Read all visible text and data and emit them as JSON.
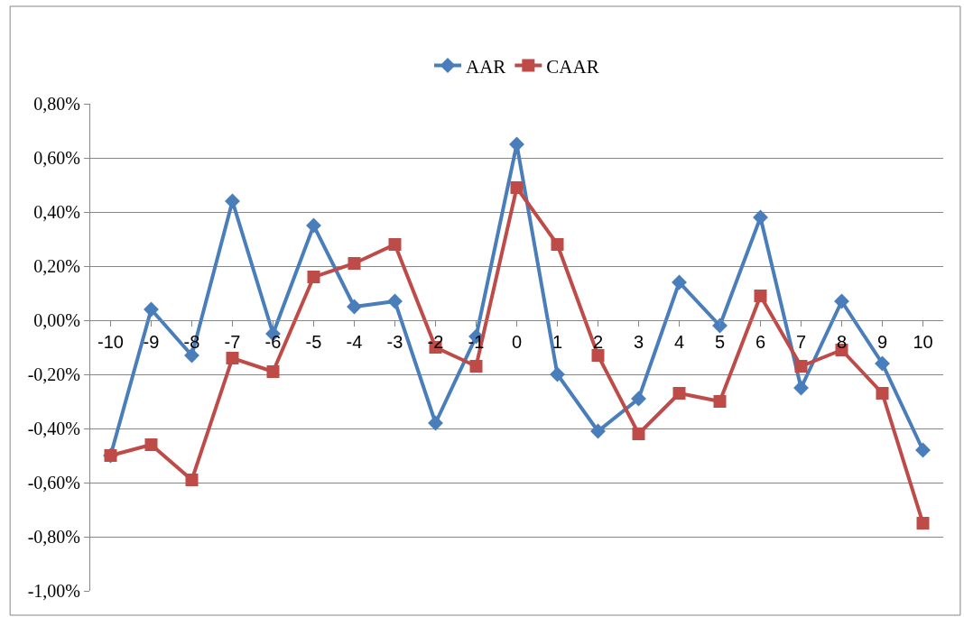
{
  "chart_data": {
    "type": "line",
    "categories": [
      "-10",
      "-9",
      "-8",
      "-7",
      "-6",
      "-5",
      "-4",
      "-3",
      "-2",
      "-1",
      "0",
      "1",
      "2",
      "3",
      "4",
      "5",
      "6",
      "7",
      "8",
      "9",
      "10"
    ],
    "series": [
      {
        "name": "AAR",
        "color": "#4a7ebb",
        "marker": "diamond",
        "values": [
          -0.5,
          0.04,
          -0.13,
          0.44,
          -0.05,
          0.35,
          0.05,
          0.07,
          -0.38,
          -0.06,
          0.65,
          -0.2,
          -0.41,
          -0.29,
          0.14,
          -0.02,
          0.38,
          -0.25,
          0.07,
          -0.16,
          -0.48
        ]
      },
      {
        "name": "CAAR",
        "color": "#be4b48",
        "marker": "square",
        "values": [
          -0.5,
          -0.46,
          -0.59,
          -0.14,
          -0.19,
          0.16,
          0.21,
          0.28,
          -0.1,
          -0.17,
          0.49,
          0.28,
          -0.13,
          -0.42,
          -0.27,
          -0.3,
          0.09,
          -0.17,
          -0.11,
          -0.27,
          -0.75
        ]
      }
    ],
    "ylim": [
      -1.0,
      0.8
    ],
    "yticks": [
      {
        "value": -1.0,
        "label": "-1,00%"
      },
      {
        "value": -0.8,
        "label": "-0,80%"
      },
      {
        "value": -0.6,
        "label": "-0,60%"
      },
      {
        "value": -0.4,
        "label": "-0,40%"
      },
      {
        "value": -0.2,
        "label": "-0,20%"
      },
      {
        "value": 0.0,
        "label": "0,00%"
      },
      {
        "value": 0.2,
        "label": "0,20%"
      },
      {
        "value": 0.4,
        "label": "0,40%"
      },
      {
        "value": 0.6,
        "label": "0,60%"
      },
      {
        "value": 0.8,
        "label": "0,80%"
      }
    ],
    "grid": "y",
    "legend": "top",
    "line_style": "solid"
  }
}
